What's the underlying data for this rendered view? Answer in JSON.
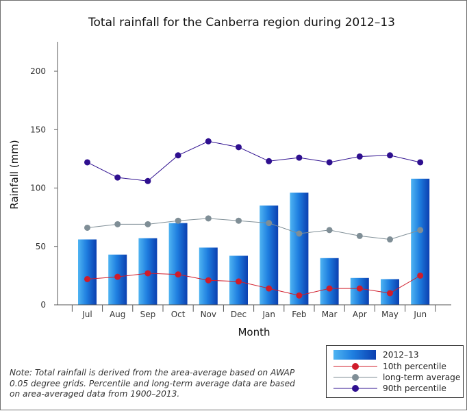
{
  "chart_data": {
    "type": "bar",
    "title": "Total rainfall for the Canberra region during 2012–13",
    "xlabel": "Month",
    "ylabel": "Rainfall (mm)",
    "ylim": [
      0,
      225
    ],
    "yticks": [
      0,
      50,
      100,
      150,
      200
    ],
    "grid": false,
    "legend_position": "bottom-right",
    "categories": [
      "Jul",
      "Aug",
      "Sep",
      "Oct",
      "Nov",
      "Dec",
      "Jan",
      "Feb",
      "Mar",
      "Apr",
      "May",
      "Jun"
    ],
    "series": [
      {
        "name": "2012–13",
        "type": "bar",
        "color": "#1a6fd6",
        "values": [
          56,
          43,
          57,
          70,
          49,
          42,
          85,
          96,
          40,
          23,
          22,
          108
        ]
      },
      {
        "name": "10th percentile",
        "type": "line",
        "color": "#d01c2a",
        "values": [
          22,
          24,
          27,
          26,
          21,
          20,
          14,
          8,
          14,
          14,
          10,
          25
        ]
      },
      {
        "name": "long-term average",
        "type": "line",
        "color": "#7f8e96",
        "values": [
          66,
          69,
          69,
          72,
          74,
          72,
          70,
          61,
          64,
          59,
          56,
          64
        ]
      },
      {
        "name": "90th percentile",
        "type": "line",
        "color": "#2e0f8f",
        "values": [
          122,
          109,
          106,
          128,
          140,
          135,
          123,
          126,
          122,
          127,
          128,
          122
        ]
      }
    ]
  },
  "note": "Note: Total rainfall is derived from the area-average based on AWAP 0.05 degree grids. Percentile and long-term average data are based on area-averaged data from 1900–2013."
}
